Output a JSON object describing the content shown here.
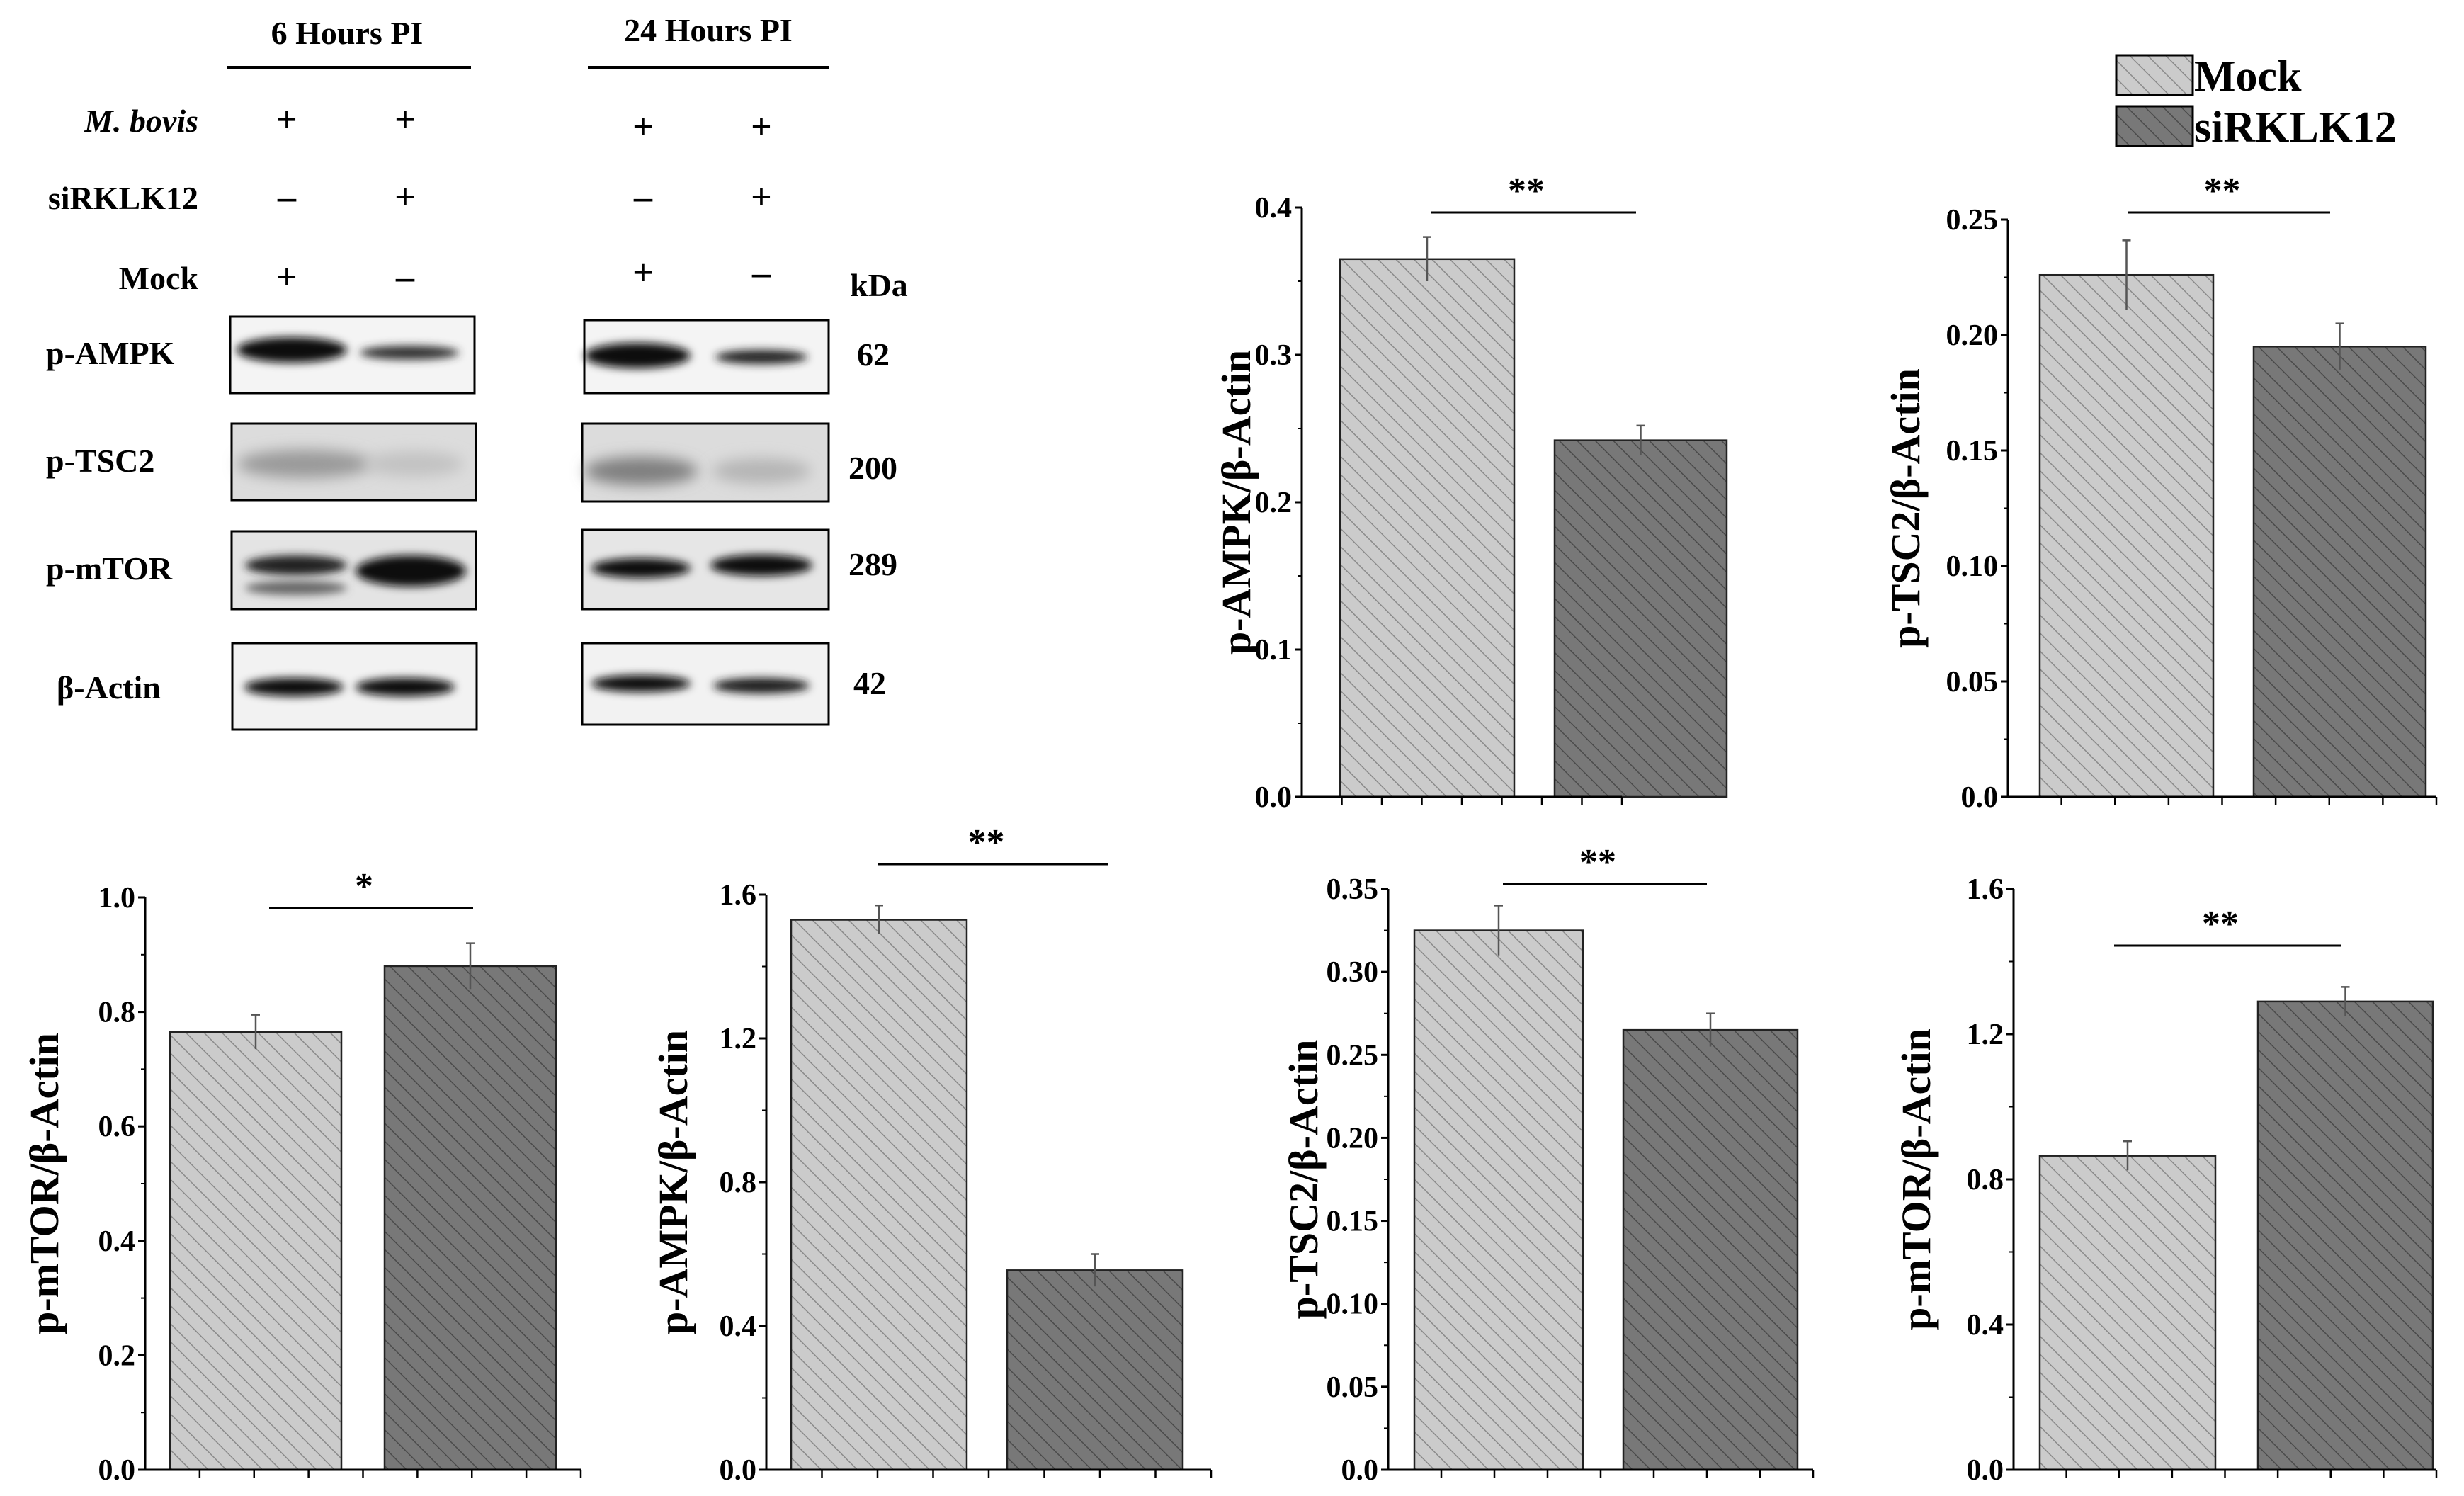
{
  "blot": {
    "time_headers": [
      "6 Hours PI",
      "24 Hours PI"
    ],
    "conditions": [
      {
        "label": "M. bovis",
        "italic": true,
        "lanes": [
          "+",
          "+",
          "+",
          "+"
        ]
      },
      {
        "label": "siRKLK12",
        "italic": false,
        "lanes": [
          "–",
          "+",
          "–",
          "+"
        ]
      },
      {
        "label": "Mock",
        "italic": false,
        "lanes": [
          "+",
          "–",
          "+",
          "–"
        ]
      }
    ],
    "kda_label": "kDa",
    "proteins": [
      {
        "label": "p-AMPK",
        "kda": "62"
      },
      {
        "label": "p-TSC2",
        "kda": "200"
      },
      {
        "label": "p-mTOR",
        "kda": "289"
      },
      {
        "label": "β-Actin",
        "kda": "42"
      }
    ]
  },
  "legend": {
    "items": [
      {
        "label": "Mock",
        "color": "#c8c8c8"
      },
      {
        "label": "siRKLK12",
        "color": "#737373"
      }
    ]
  },
  "colors": {
    "mock": "#c8c8c8",
    "sirklk12": "#737373",
    "error_bar": "#555555"
  },
  "chart_data": [
    {
      "type": "bar",
      "panel": "6 Hours PI",
      "categories": [
        "Mock",
        "siRKLK12"
      ],
      "values": [
        0.365,
        0.242
      ],
      "errors": [
        0.015,
        0.01
      ],
      "ylabel": "p-AMPK/β-Actin",
      "ylim": [
        0,
        0.4
      ],
      "yticks": [
        "0.0",
        "0.1",
        "0.2",
        "0.3",
        "0.4"
      ],
      "yvals": [
        0,
        0.1,
        0.2,
        0.3,
        0.4
      ],
      "significance": "**",
      "grid": false
    },
    {
      "type": "bar",
      "panel": "6 Hours PI",
      "categories": [
        "Mock",
        "siRKLK12"
      ],
      "values": [
        0.226,
        0.195
      ],
      "errors": [
        0.015,
        0.01
      ],
      "ylabel": "p-TSC2/β-Actin",
      "ylim": [
        0,
        0.25
      ],
      "yticks": [
        "0.0",
        "0.05",
        "0.10",
        "0.15",
        "0.20",
        "0.25"
      ],
      "yvals": [
        0,
        0.05,
        0.1,
        0.15,
        0.2,
        0.25
      ],
      "significance": "**",
      "grid": false
    },
    {
      "type": "bar",
      "panel": "6 Hours PI",
      "categories": [
        "Mock",
        "siRKLK12"
      ],
      "values": [
        0.765,
        0.88
      ],
      "errors": [
        0.03,
        0.04
      ],
      "ylabel": "p-mTOR/β-Actin",
      "ylim": [
        0,
        1.0
      ],
      "yticks": [
        "0.0",
        "0.2",
        "0.4",
        "0.6",
        "0.8",
        "1.0"
      ],
      "yvals": [
        0,
        0.2,
        0.4,
        0.6,
        0.8,
        1.0
      ],
      "significance": "*",
      "grid": false
    },
    {
      "type": "bar",
      "panel": "24 Hours PI",
      "categories": [
        "Mock",
        "siRKLK12"
      ],
      "values": [
        1.53,
        0.555
      ],
      "errors": [
        0.04,
        0.045
      ],
      "ylabel": "p-AMPK/β-Actin",
      "ylim": [
        0,
        1.6
      ],
      "yticks": [
        "0.0",
        "0.4",
        "0.8",
        "1.2",
        "1.6"
      ],
      "yvals": [
        0,
        0.4,
        0.8,
        1.2,
        1.6
      ],
      "significance": "**",
      "grid": false
    },
    {
      "type": "bar",
      "panel": "24 Hours PI",
      "categories": [
        "Mock",
        "siRKLK12"
      ],
      "values": [
        0.325,
        0.265
      ],
      "errors": [
        0.015,
        0.01
      ],
      "ylabel": "p-TSC2/β-Actin",
      "ylim": [
        0,
        0.35
      ],
      "yticks": [
        "0.0",
        "0.05",
        "0.10",
        "0.15",
        "0.20",
        "0.25",
        "0.30",
        "0.35"
      ],
      "yvals": [
        0,
        0.05,
        0.1,
        0.15,
        0.2,
        0.25,
        0.3,
        0.35
      ],
      "significance": "**",
      "grid": false
    },
    {
      "type": "bar",
      "panel": "24 Hours PI",
      "categories": [
        "Mock",
        "siRKLK12"
      ],
      "values": [
        0.865,
        1.29
      ],
      "errors": [
        0.04,
        0.04
      ],
      "ylabel": "p-mTOR/β-Actin",
      "ylim": [
        0,
        1.6
      ],
      "yticks": [
        "0.0",
        "0.4",
        "0.8",
        "1.2",
        "1.6"
      ],
      "yvals": [
        0,
        0.4,
        0.8,
        1.2,
        1.6
      ],
      "significance": "**",
      "grid": false
    }
  ]
}
